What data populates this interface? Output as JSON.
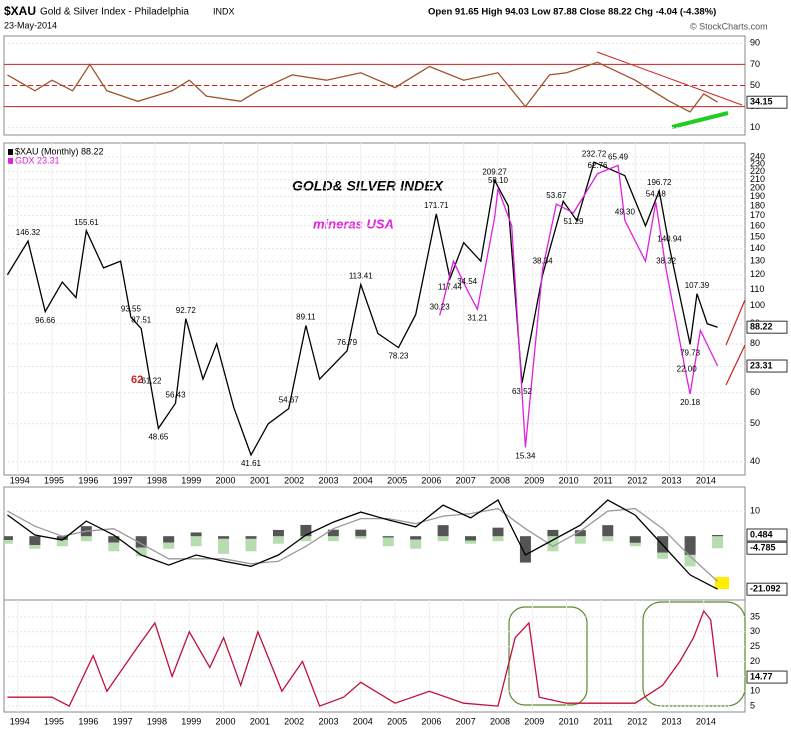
{
  "header": {
    "symbol": "$XAU",
    "name": "Gold & Silver Index - Philadelphia",
    "exchange": "INDX",
    "date": "23-May-2014",
    "quote": "Open 91.65  High 94.03  Low 87.88  Close 88.22  Chg -4.04 (-4.38%)",
    "source": "© StockCharts.com"
  },
  "annotations": [
    "GOLD& SILVER INDEX",
    "mineras USA",
    "62"
  ],
  "chart_data": [
    {
      "type": "line",
      "xlim": [
        1993.6,
        2015.2
      ],
      "ylim": [
        5,
        95
      ],
      "yticks": [
        10,
        30,
        50,
        70,
        90
      ],
      "ref_lines": [
        30,
        50,
        70
      ],
      "ref_color": "#cc2222",
      "x": [
        1993.7,
        1994.5,
        1995.0,
        1995.6,
        1996.1,
        1996.6,
        1997.5,
        1998.0,
        1998.5,
        1999.0,
        1999.5,
        2000.5,
        2001.0,
        2002.0,
        2003.0,
        2004.0,
        2005.0,
        2006.0,
        2007.0,
        2008.0,
        2008.8,
        2009.5,
        2010.0,
        2010.9,
        2012.0,
        2013.0,
        2013.6,
        2014.0,
        2014.4
      ],
      "series": [
        {
          "color": "#a0522d",
          "show_last": true,
          "values": [
            60,
            45,
            55,
            45,
            70,
            45,
            35,
            40,
            45,
            55,
            40,
            35,
            45,
            60,
            55,
            62,
            48,
            68,
            55,
            62,
            30,
            60,
            62,
            72,
            55,
            35,
            25,
            42,
            34.15
          ]
        }
      ]
    },
    {
      "type": "line",
      "log_scale": true,
      "xlim": [
        1993.6,
        2015.2
      ],
      "ylim": [
        37,
        250
      ],
      "y2lim": [
        13.3,
        70.9
      ],
      "yticks": [
        40,
        50,
        60,
        70,
        80,
        90,
        100,
        110,
        120,
        130,
        140,
        150,
        160,
        170,
        180,
        190,
        200,
        210,
        220,
        230,
        240
      ],
      "xticks": [
        1994,
        1995,
        1996,
        1997,
        1998,
        1999,
        2000,
        2001,
        2002,
        2003,
        2004,
        2005,
        2006,
        2007,
        2008,
        2009,
        2010,
        2011,
        2012,
        2013,
        2014
      ],
      "x": [
        1993.7,
        1994.3,
        1994.8,
        1995.3,
        1995.7,
        1996.0,
        1996.5,
        1997.0,
        1997.3,
        1997.6,
        1997.9,
        1998.1,
        1998.6,
        1998.9,
        1999.4,
        1999.8,
        2000.3,
        2000.8,
        2001.3,
        2001.9,
        2002.4,
        2002.8,
        2003.6,
        2004.0,
        2004.5,
        2005.1,
        2005.6,
        2006.2,
        2006.6,
        2007.0,
        2007.5,
        2007.9,
        2008.3,
        2008.7,
        2009.3,
        2009.9,
        2010.3,
        2010.8,
        2011.7,
        2012.3,
        2012.7,
        2013.0,
        2013.6,
        2013.8,
        2014.1,
        2014.4
      ],
      "series": [
        {
          "name": "$XAU (Monthly) 88.22",
          "color": "#000000",
          "show_last": true,
          "values": [
            120,
            146.32,
            96.66,
            115,
            105,
            155.61,
            125,
            130,
            93.55,
            87.51,
            61.22,
            48.65,
            56.43,
            92.72,
            65,
            80,
            55,
            41.61,
            50,
            54.67,
            89.11,
            65,
            76.79,
            113.41,
            85,
            78.23,
            95,
            171.71,
            117.44,
            145,
            130,
            209.27,
            180,
            63.52,
            120,
            185,
            165,
            232.72,
            215,
            160,
            196.72,
            140.94,
            79.73,
            107.39,
            90,
            88.22
          ],
          "value_labels": [
            null,
            "146.32",
            "96.66",
            null,
            null,
            "155.61",
            null,
            null,
            "93.55",
            "87.51",
            "61.22",
            "48.65",
            "56.43",
            "92.72",
            null,
            null,
            null,
            "41.61",
            null,
            "54.67",
            "89.11",
            null,
            "76.79",
            "113.41",
            null,
            "78.23",
            null,
            "171.71",
            "117.44",
            null,
            null,
            "209.27",
            null,
            "63.52",
            null,
            null,
            null,
            "232.72",
            null,
            null,
            "196.72",
            "140.94",
            "79.73",
            "107.39",
            null,
            null
          ]
        },
        {
          "name": "GDX 23.31",
          "color": "#e020e0",
          "axis": "y2",
          "show_last": true,
          "x": [
            2006.3,
            2006.7,
            2007.1,
            2007.4,
            2007.9,
            2008.0,
            2008.4,
            2008.8,
            2009.3,
            2009.7,
            2010.2,
            2010.9,
            2011.5,
            2011.7,
            2012.3,
            2012.6,
            2012.9,
            2013.5,
            2013.6,
            2013.9,
            2014.4
          ],
          "values": [
            30.23,
            40,
            34.54,
            31.21,
            50,
            58.1,
            48,
            15.34,
            38.34,
            53.67,
            51.29,
            62.76,
            65.49,
            49.3,
            40,
            54.18,
            38.32,
            22,
            20.18,
            28,
            23.31
          ],
          "value_labels": [
            "30.23",
            null,
            "34.54",
            "31.21",
            null,
            "58.10",
            null,
            "15.34",
            "38.34",
            "53.67",
            "51.29",
            "62.76",
            "65.49",
            "49.30",
            null,
            "54.18",
            "38.32",
            "22.00",
            "20.18",
            null,
            null
          ]
        }
      ]
    },
    {
      "type": "line",
      "xlim": [
        1993.6,
        2015.2
      ],
      "ylim": [
        -25,
        18
      ],
      "yticks": [
        10
      ],
      "x": [
        1993.7,
        1994.5,
        1995.3,
        1996.0,
        1996.8,
        1997.6,
        1998.4,
        1999.2,
        2000.0,
        2000.8,
        2001.6,
        2002.4,
        2003.2,
        2004.0,
        2004.8,
        2005.6,
        2006.4,
        2007.2,
        2008.0,
        2008.8,
        2009.6,
        2010.4,
        2011.2,
        2012.0,
        2012.8,
        2013.6,
        2014.4
      ],
      "series": [
        {
          "type": "bar",
          "color": "#b6dcb0",
          "show_last": true,
          "values": [
            -3,
            -5,
            -4,
            -2,
            -6,
            -8,
            -5,
            -4,
            -7,
            -6,
            -3,
            -2,
            -2,
            -1,
            -4,
            -5,
            -2,
            -3,
            -2,
            -10,
            -6,
            -3,
            -2,
            -4,
            -9,
            -12,
            -4.785
          ]
        },
        {
          "type": "bar",
          "color": "#555555",
          "show_last": true,
          "values": [
            -1.5,
            -3.5,
            -1.5,
            4,
            -2.5,
            -4.5,
            -2.5,
            1.5,
            -1,
            -1,
            2.5,
            4.5,
            2.6,
            2.6,
            -0.5,
            -1.3,
            4.4,
            -1.7,
            3.4,
            -10.5,
            2.5,
            2.4,
            4.4,
            -2.6,
            -6.5,
            -7.4,
            0.484
          ]
        },
        {
          "color": "#999999",
          "values": [
            10,
            4,
            0,
            2,
            3,
            -3,
            -9,
            -9,
            -9,
            -11,
            -10,
            -4,
            3,
            7,
            7,
            5,
            8,
            9,
            11,
            3,
            -4,
            2,
            10,
            11,
            3,
            -8,
            -18
          ]
        },
        {
          "color": "#000000",
          "show_last": true,
          "values": [
            8.5,
            0.5,
            -1.5,
            6,
            0.5,
            -7.5,
            -11.5,
            -7.5,
            -10,
            -12,
            -7.5,
            0.5,
            5.6,
            9.6,
            6.5,
            3.7,
            12.4,
            7.3,
            14.4,
            -7.5,
            -1.5,
            4.4,
            14.4,
            8.4,
            -3.5,
            -15.4,
            -21.092
          ]
        }
      ]
    },
    {
      "type": "line",
      "xlim": [
        1993.6,
        2015.2
      ],
      "ylim": [
        0,
        38
      ],
      "yticks": [
        5,
        10,
        15,
        20,
        25,
        30,
        35
      ],
      "xticks": [
        1994,
        1995,
        1996,
        1997,
        1998,
        1999,
        2000,
        2001,
        2002,
        2003,
        2004,
        2005,
        2006,
        2007,
        2008,
        2009,
        2010,
        2011,
        2012,
        2013,
        2014
      ],
      "x": [
        1993.7,
        1995.0,
        1995.5,
        1996.2,
        1996.6,
        1997.5,
        1998.0,
        1998.5,
        1999.0,
        1999.6,
        2000.0,
        2000.5,
        2001.0,
        2001.7,
        2002.3,
        2002.8,
        2003.5,
        2004.0,
        2005.0,
        2006.0,
        2007.0,
        2008.0,
        2008.5,
        2008.9,
        2009.2,
        2010.0,
        2011.0,
        2012.0,
        2012.8,
        2013.3,
        2013.7,
        2014.0,
        2014.2,
        2014.4
      ],
      "series": [
        {
          "color": "#c0103a",
          "show_last": true,
          "values": [
            8,
            8,
            5,
            22,
            10,
            25,
            33,
            15,
            30,
            18,
            28,
            12,
            30,
            10,
            20,
            5,
            8,
            13,
            6,
            10,
            6,
            5,
            28,
            33,
            8,
            6,
            6,
            6,
            12,
            20,
            28,
            37,
            34,
            14.77
          ]
        }
      ]
    }
  ]
}
